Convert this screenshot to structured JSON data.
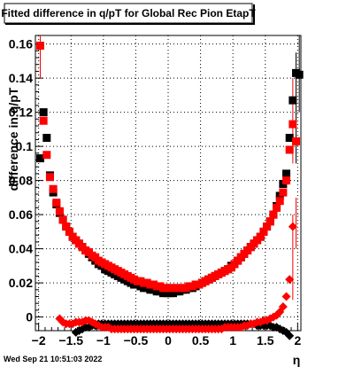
{
  "chart_data": {
    "type": "scatter",
    "title": "Fitted difference in q/pT for Global Rec Pion EtapT",
    "xlabel": "η",
    "ylabel": "difference in q/pT",
    "xlim": [
      -2.05,
      2.05
    ],
    "ylim": [
      -0.008,
      0.165
    ],
    "grid": true,
    "x_ticks": [
      -2,
      -1.5,
      -1,
      -0.5,
      0,
      0.5,
      1,
      1.5,
      2
    ],
    "x_tick_labels": [
      "−2",
      "−1.5",
      "−1",
      "−0.5",
      "0",
      "0.5",
      "1",
      "1.5",
      "2"
    ],
    "y_ticks": [
      0,
      0.02,
      0.04,
      0.06,
      0.08,
      0.1,
      0.12,
      0.14,
      0.16
    ],
    "y_tick_labels": [
      "0",
      "0.02",
      "0.04",
      "0.06",
      "0.08",
      "0.1",
      "0.12",
      "0.14",
      "0.16"
    ],
    "timestamp": "Wed Sep 21 10:51:03 2022",
    "series": [
      {
        "color": "#000000",
        "x": [
          -1.975,
          -1.925,
          -1.875,
          -1.825,
          -1.775,
          -1.725,
          -1.675,
          -1.625,
          -1.575,
          -1.525,
          -1.475,
          -1.425,
          -1.375,
          -1.325,
          -1.275,
          -1.225,
          -1.175,
          -1.125,
          -1.075,
          -1.025,
          -0.975,
          -0.925,
          -0.875,
          -0.825,
          -0.775,
          -0.725,
          -0.675,
          -0.625,
          -0.575,
          -0.525,
          -0.475,
          -0.425,
          -0.375,
          -0.325,
          -0.275,
          -0.225,
          -0.175,
          -0.125,
          -0.075,
          -0.025,
          0.025,
          0.075,
          0.125,
          0.175,
          0.225,
          0.275,
          0.325,
          0.375,
          0.425,
          0.475,
          0.525,
          0.575,
          0.625,
          0.675,
          0.725,
          0.775,
          0.825,
          0.875,
          0.925,
          0.975,
          1.025,
          1.075,
          1.125,
          1.175,
          1.225,
          1.275,
          1.325,
          1.375,
          1.425,
          1.475,
          1.525,
          1.575,
          1.625,
          1.675,
          1.725,
          1.775,
          1.825,
          1.875,
          1.925,
          1.975,
          2.025
        ],
        "y": [
          0.093,
          0.12,
          0.105,
          0.083,
          0.073,
          0.066,
          0.061,
          0.057,
          0.053,
          0.05,
          0.047,
          0.045,
          0.043,
          0.041,
          0.039,
          0.037,
          0.035,
          0.033,
          0.031,
          0.03,
          0.028,
          0.027,
          0.026,
          0.025,
          0.024,
          0.023,
          0.022,
          0.021,
          0.02,
          0.019,
          0.019,
          0.018,
          0.017,
          0.017,
          0.016,
          0.016,
          0.015,
          0.015,
          0.014,
          0.014,
          0.014,
          0.014,
          0.015,
          0.015,
          0.016,
          0.016,
          0.017,
          0.017,
          0.018,
          0.019,
          0.02,
          0.021,
          0.022,
          0.023,
          0.024,
          0.025,
          0.026,
          0.027,
          0.028,
          0.03,
          0.031,
          0.033,
          0.035,
          0.037,
          0.039,
          0.041,
          0.043,
          0.045,
          0.047,
          0.05,
          0.053,
          0.056,
          0.06,
          0.065,
          0.071,
          0.078,
          0.084,
          0.105,
          0.127,
          0.143,
          0.142
        ]
      },
      {
        "color": "#ff0000",
        "x": [
          -1.975,
          -1.925,
          -1.875,
          -1.825,
          -1.775,
          -1.725,
          -1.675,
          -1.625,
          -1.575,
          -1.525,
          -1.475,
          -1.425,
          -1.375,
          -1.325,
          -1.275,
          -1.225,
          -1.175,
          -1.125,
          -1.075,
          -1.025,
          -0.975,
          -0.925,
          -0.875,
          -0.825,
          -0.775,
          -0.725,
          -0.675,
          -0.625,
          -0.575,
          -0.525,
          -0.475,
          -0.425,
          -0.375,
          -0.325,
          -0.275,
          -0.225,
          -0.175,
          -0.125,
          -0.075,
          -0.025,
          0.025,
          0.075,
          0.125,
          0.175,
          0.225,
          0.275,
          0.325,
          0.375,
          0.425,
          0.475,
          0.525,
          0.575,
          0.625,
          0.675,
          0.725,
          0.775,
          0.825,
          0.875,
          0.925,
          0.975,
          1.025,
          1.075,
          1.125,
          1.175,
          1.225,
          1.275,
          1.325,
          1.375,
          1.425,
          1.475,
          1.525,
          1.575,
          1.625,
          1.675,
          1.725,
          1.775,
          1.825,
          1.875,
          1.925,
          1.975
        ],
        "y": [
          0.159,
          0.115,
          0.095,
          0.082,
          0.075,
          0.067,
          0.062,
          0.057,
          0.053,
          0.05,
          0.047,
          0.045,
          0.043,
          0.041,
          0.039,
          0.038,
          0.036,
          0.035,
          0.033,
          0.032,
          0.031,
          0.03,
          0.029,
          0.028,
          0.027,
          0.026,
          0.025,
          0.024,
          0.023,
          0.022,
          0.021,
          0.021,
          0.02,
          0.02,
          0.019,
          0.019,
          0.018,
          0.018,
          0.017,
          0.017,
          0.017,
          0.017,
          0.017,
          0.017,
          0.017,
          0.017,
          0.018,
          0.018,
          0.019,
          0.019,
          0.02,
          0.021,
          0.022,
          0.023,
          0.024,
          0.025,
          0.026,
          0.027,
          0.028,
          0.029,
          0.031,
          0.033,
          0.035,
          0.037,
          0.039,
          0.041,
          0.043,
          0.045,
          0.047,
          0.05,
          0.053,
          0.056,
          0.06,
          0.064,
          0.068,
          0.073,
          0.08,
          0.098,
          0.113,
          0.103
        ]
      },
      {
        "color": "#000000",
        "x": [
          -1.975,
          -1.925,
          -1.875,
          -1.825,
          -1.775,
          -1.725,
          -1.675,
          -1.625,
          -1.575,
          -1.525,
          -1.475,
          -1.425,
          -1.375,
          -1.325,
          -1.275,
          -1.225,
          -1.175,
          -1.125,
          -1.075,
          -1.025,
          -0.975,
          -0.925,
          -0.875,
          -0.825,
          -0.775,
          -0.725,
          -0.675,
          -0.625,
          -0.575,
          -0.525,
          -0.475,
          -0.425,
          -0.375,
          -0.325,
          -0.275,
          -0.225,
          -0.175,
          -0.125,
          -0.075,
          -0.025,
          0.025,
          0.075,
          0.125,
          0.175,
          0.225,
          0.275,
          0.325,
          0.375,
          0.425,
          0.475,
          0.525,
          0.575,
          0.625,
          0.675,
          0.725,
          0.775,
          0.825,
          0.875,
          0.925,
          0.975,
          1.025,
          1.075,
          1.125,
          1.175,
          1.225,
          1.275,
          1.325,
          1.375,
          1.425,
          1.475,
          1.525,
          1.575,
          1.625,
          1.675,
          1.725,
          1.775,
          1.825,
          1.875
        ],
        "y": [
          null,
          null,
          null,
          null,
          null,
          null,
          null,
          null,
          null,
          null,
          null,
          -0.009,
          -0.008,
          -0.007,
          -0.006,
          -0.006,
          -0.005,
          -0.005,
          -0.004,
          -0.004,
          -0.004,
          -0.004,
          -0.004,
          -0.004,
          -0.004,
          -0.004,
          -0.004,
          -0.004,
          -0.004,
          -0.004,
          -0.004,
          -0.004,
          -0.004,
          -0.004,
          -0.004,
          -0.004,
          -0.004,
          -0.004,
          -0.004,
          -0.004,
          -0.004,
          -0.004,
          -0.004,
          -0.004,
          -0.004,
          -0.004,
          -0.004,
          -0.004,
          -0.004,
          -0.004,
          -0.004,
          -0.004,
          -0.004,
          -0.004,
          -0.004,
          -0.004,
          -0.004,
          -0.004,
          -0.004,
          -0.004,
          -0.004,
          -0.004,
          -0.004,
          -0.004,
          -0.004,
          -0.004,
          -0.004,
          -0.005,
          -0.005,
          -0.005,
          -0.005,
          -0.005,
          -0.006,
          -0.006,
          -0.007,
          -0.008,
          -0.009,
          -0.011
        ]
      },
      {
        "color": "#ff0000",
        "x": [
          -1.975,
          -1.925,
          -1.875,
          -1.825,
          -1.775,
          -1.725,
          -1.675,
          -1.625,
          -1.575,
          -1.525,
          -1.475,
          -1.425,
          -1.375,
          -1.325,
          -1.275,
          -1.225,
          -1.175,
          -1.125,
          -1.075,
          -1.025,
          -0.975,
          -0.925,
          -0.875,
          -0.825,
          -0.775,
          -0.725,
          -0.675,
          -0.625,
          -0.575,
          -0.525,
          -0.475,
          -0.425,
          -0.375,
          -0.325,
          -0.275,
          -0.225,
          -0.175,
          -0.125,
          -0.075,
          -0.025,
          0.025,
          0.075,
          0.125,
          0.175,
          0.225,
          0.275,
          0.325,
          0.375,
          0.425,
          0.475,
          0.525,
          0.575,
          0.625,
          0.675,
          0.725,
          0.775,
          0.825,
          0.875,
          0.925,
          0.975,
          1.025,
          1.075,
          1.125,
          1.175,
          1.225,
          1.275,
          1.325,
          1.375,
          1.425,
          1.475,
          1.525,
          1.575,
          1.625,
          1.675,
          1.725,
          1.775,
          1.825,
          1.875,
          1.925,
          1.975
        ],
        "y": [
          null,
          null,
          null,
          null,
          null,
          null,
          -0.001,
          -0.003,
          -0.004,
          -0.004,
          -0.004,
          -0.003,
          -0.003,
          -0.003,
          -0.002,
          -0.002,
          -0.003,
          -0.004,
          -0.005,
          -0.006,
          -0.006,
          -0.006,
          -0.007,
          -0.007,
          -0.007,
          -0.007,
          -0.007,
          -0.007,
          -0.007,
          -0.007,
          -0.007,
          -0.007,
          -0.007,
          -0.007,
          -0.007,
          -0.007,
          -0.007,
          -0.007,
          -0.007,
          -0.007,
          -0.007,
          -0.007,
          -0.007,
          -0.007,
          -0.007,
          -0.007,
          -0.007,
          -0.007,
          -0.007,
          -0.007,
          -0.007,
          -0.007,
          -0.007,
          -0.007,
          -0.007,
          -0.007,
          -0.007,
          -0.006,
          -0.006,
          -0.006,
          -0.006,
          -0.006,
          -0.006,
          -0.005,
          -0.005,
          -0.004,
          -0.004,
          -0.003,
          -0.003,
          -0.002,
          -0.002,
          -0.001,
          0.0,
          0.001,
          0.003,
          0.006,
          0.012,
          0.022,
          0.053,
          null
        ]
      }
    ]
  }
}
